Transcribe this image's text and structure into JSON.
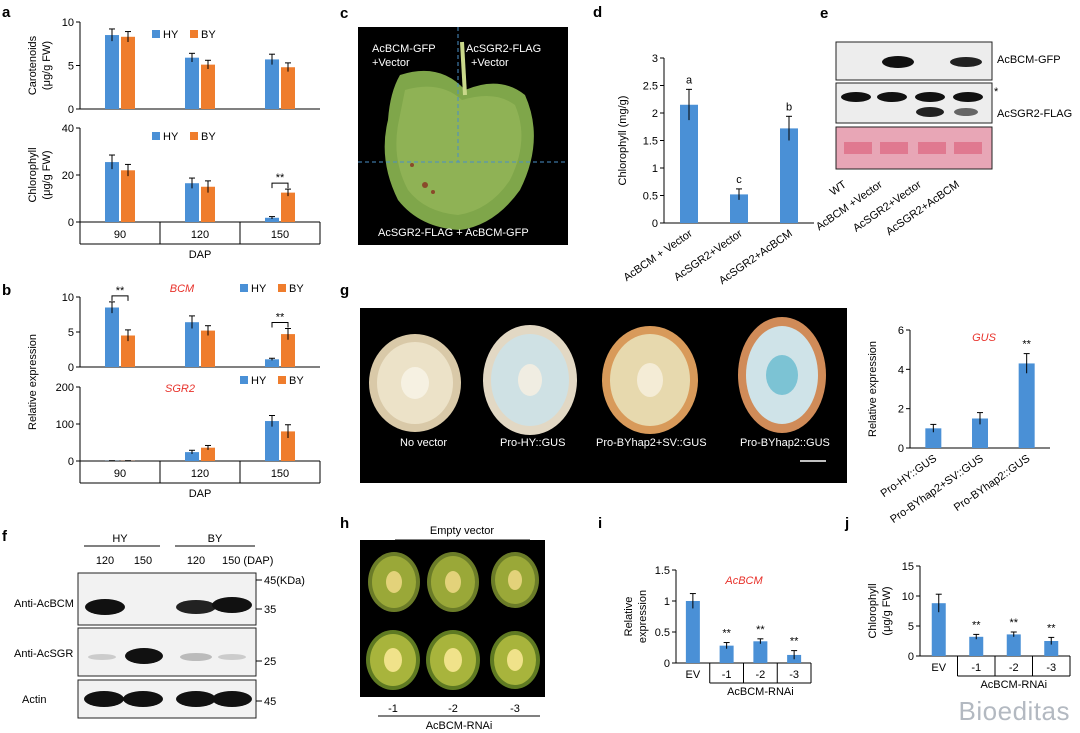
{
  "colors": {
    "hy": "#4a90d6",
    "by": "#ef7d2d",
    "red": "#e8322b"
  },
  "panels": {
    "a": "a",
    "b": "b",
    "c": "c",
    "d": "d",
    "e": "e",
    "f": "f",
    "g": "g",
    "h": "h",
    "i": "i",
    "j": "j"
  },
  "panel_c": {
    "tl": "AcBCM-GFP",
    "tl2": "+Vector",
    "tr": "AcSGR2-FLAG",
    "tr2": "+Vector",
    "bottom": "AcSGR2-FLAG + AcBCM-GFP"
  },
  "panel_e": {
    "band1": "AcBCM-GFP",
    "band2": "AcSGR2-FLAG",
    "star": "*",
    "lanes": [
      "WT",
      "AcBCM +Vector",
      "AcSGR2+Vector",
      "AcSGR2+AcBCM"
    ]
  },
  "panel_f": {
    "hy": "HY",
    "by": "BY",
    "lanes": [
      "120",
      "150",
      "120",
      "150 (DAP)"
    ],
    "rows": [
      "Anti-AcBCM",
      "Anti-AcSGR",
      "Actin"
    ],
    "mw": [
      "45(KDa)",
      "35",
      "25",
      "45"
    ]
  },
  "panel_g": {
    "labels": [
      "No vector",
      "Pro-HY::GUS",
      "Pro-BYhap2+SV::GUS",
      "Pro-BYhap2::GUS"
    ]
  },
  "panel_h": {
    "top": "Empty vector",
    "lanes": [
      "-1",
      "-2",
      "-3"
    ],
    "bottom": "AcBCM-RNAi"
  },
  "watermark": "Bioeditas",
  "chart_data": [
    {
      "id": "a-top",
      "type": "bar",
      "categories": [
        "90",
        "120",
        "150"
      ],
      "series": [
        {
          "name": "HY",
          "values": [
            8.5,
            5.9,
            5.7
          ]
        },
        {
          "name": "BY",
          "values": [
            8.3,
            5.1,
            4.8
          ]
        }
      ],
      "errors": [
        [
          0.7,
          0.5,
          0.6
        ],
        [
          0.6,
          0.5,
          0.5
        ]
      ],
      "ylabel": "Carotenoids (μg/g FW)",
      "ylabel_lines": [
        "Carotenoids",
        "(μg/g FW)"
      ],
      "ylim": [
        0,
        10
      ],
      "yticks": [
        "0",
        "5",
        "10"
      ],
      "legend": "top-center"
    },
    {
      "id": "a-bottom",
      "type": "bar",
      "categories": [
        "90",
        "120",
        "150"
      ],
      "series": [
        {
          "name": "HY",
          "values": [
            25.5,
            16.5,
            1.8
          ]
        },
        {
          "name": "BY",
          "values": [
            22,
            15,
            12.5
          ]
        }
      ],
      "errors": [
        [
          3,
          2.2,
          0.5
        ],
        [
          2.5,
          2.5,
          1.5
        ]
      ],
      "ylabel": "Chlorophyll (μg/g FW)",
      "ylabel_lines": [
        "Chlorophyll",
        "(μg/g FW)"
      ],
      "ylim": [
        0,
        40
      ],
      "yticks": [
        "0",
        "20",
        "40"
      ],
      "xlabel": "DAP",
      "significance": [
        {
          "category": "150",
          "label": "**"
        }
      ],
      "legend": "top-center"
    },
    {
      "id": "b-top",
      "type": "bar",
      "title": "BCM",
      "categories": [
        "90",
        "120",
        "150"
      ],
      "series": [
        {
          "name": "HY",
          "values": [
            8.5,
            6.4,
            1.1
          ]
        },
        {
          "name": "BY",
          "values": [
            4.5,
            5.2,
            4.7
          ]
        }
      ],
      "errors": [
        [
          0.8,
          0.9,
          0.15
        ],
        [
          0.8,
          0.7,
          0.8
        ]
      ],
      "ylim": [
        0,
        10
      ],
      "yticks": [
        "0",
        "5",
        "10"
      ],
      "significance": [
        {
          "category": "90",
          "label": "**"
        },
        {
          "category": "150",
          "label": "**"
        }
      ],
      "legend": "top-right"
    },
    {
      "id": "b-bottom",
      "type": "bar",
      "title": "SGR2",
      "categories": [
        "90",
        "120",
        "150"
      ],
      "series": [
        {
          "name": "HY",
          "values": [
            0.5,
            24,
            108
          ]
        },
        {
          "name": "BY",
          "values": [
            0.5,
            36,
            80
          ]
        }
      ],
      "errors": [
        [
          0.3,
          5,
          15
        ],
        [
          0.3,
          6,
          18
        ]
      ],
      "ylim": [
        0,
        200
      ],
      "yticks": [
        "0",
        "100",
        "200"
      ],
      "xlabel": "DAP",
      "ylabel": "Relative expression",
      "legend": "top-right"
    },
    {
      "id": "d",
      "type": "bar",
      "categories": [
        "AcBCM + Vector",
        "AcSGR2+Vector",
        "AcSGR2+AcBCM"
      ],
      "values": [
        2.15,
        0.52,
        1.72
      ],
      "errors": [
        0.28,
        0.1,
        0.22
      ],
      "letters": [
        "a",
        "c",
        "b"
      ],
      "ylabel": "Chlorophyll (mg/g)",
      "ylim": [
        0,
        3
      ],
      "yticks": [
        "0",
        "0.5",
        "1",
        "1.5",
        "2",
        "2.5",
        "3"
      ]
    },
    {
      "id": "g-chart",
      "type": "bar",
      "title": "GUS",
      "categories": [
        "Pro-HY::GUS",
        "Pro-BYhap2+SV::GUS",
        "Pro-BYhap2::GUS"
      ],
      "values": [
        1,
        1.5,
        4.3
      ],
      "errors": [
        0.2,
        0.3,
        0.5
      ],
      "significance": [
        {
          "category": "Pro-BYhap2::GUS",
          "label": "**"
        }
      ],
      "ylabel": "Relative expression",
      "ylim": [
        0,
        6
      ],
      "yticks": [
        "0",
        "2",
        "4",
        "6"
      ]
    },
    {
      "id": "i",
      "type": "bar",
      "title": "AcBCM",
      "categories": [
        "EV",
        "-1",
        "-2",
        "-3"
      ],
      "values": [
        1,
        0.28,
        0.35,
        0.13
      ],
      "errors": [
        0.12,
        0.05,
        0.04,
        0.07
      ],
      "significance": [
        {
          "category": "-1",
          "label": "**"
        },
        {
          "category": "-2",
          "label": "**"
        },
        {
          "category": "-3",
          "label": "**"
        }
      ],
      "ylabel": "Relative expression",
      "ylabel_lines": [
        "Relative",
        "expression"
      ],
      "xlabel": "AcBCM-RNAi",
      "ylim": [
        0,
        1.5
      ],
      "yticks": [
        "0",
        "0.5",
        "1",
        "1.5"
      ]
    },
    {
      "id": "j",
      "type": "bar",
      "categories": [
        "EV",
        "-1",
        "-2",
        "-3"
      ],
      "values": [
        8.8,
        3.2,
        3.6,
        2.5
      ],
      "errors": [
        1.5,
        0.4,
        0.4,
        0.6
      ],
      "significance": [
        {
          "category": "-1",
          "label": "**"
        },
        {
          "category": "-2",
          "label": "**"
        },
        {
          "category": "-3",
          "label": "**"
        }
      ],
      "ylabel": "Chlorophyll (μg/g FW)",
      "ylabel_lines": [
        "Chlorophyll",
        "(μg/g FW)"
      ],
      "xlabel": "AcBCM-RNAi",
      "ylim": [
        0,
        15
      ],
      "yticks": [
        "0",
        "5",
        "10",
        "15"
      ]
    }
  ]
}
